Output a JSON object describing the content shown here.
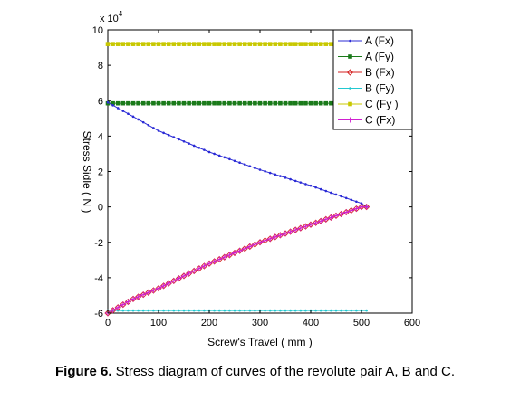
{
  "caption": {
    "label": "Figure 6.",
    "text": " Stress diagram of curves of the revolute pair A, B and C."
  },
  "chart_data": {
    "type": "line",
    "xlabel": "Screw's Travel   ( mm )",
    "ylabel": "Stress Sidle ( N )",
    "y_multiplier_base": "x 10",
    "y_multiplier_exp": "4",
    "xlim": [
      0,
      600
    ],
    "ylim": [
      -6,
      10
    ],
    "x_ticks": [
      0,
      100,
      200,
      300,
      400,
      500,
      600
    ],
    "y_ticks": [
      -6,
      -4,
      -2,
      0,
      2,
      4,
      6,
      8,
      10
    ],
    "grid": false,
    "legend_position": "top-right",
    "series": [
      {
        "name": "A (Fx)",
        "color": "#2b2bd6",
        "marker": "dot",
        "x": [
          0,
          100,
          200,
          300,
          400,
          500,
          510
        ],
        "y": [
          5.9,
          4.3,
          3.1,
          2.1,
          1.2,
          0.2,
          0.0
        ]
      },
      {
        "name": "A (Fy)",
        "color": "#1a7a1a",
        "marker": "square",
        "x": [
          0,
          510
        ],
        "y": [
          5.85,
          5.85
        ]
      },
      {
        "name": "B (Fx)",
        "color": "#d42020",
        "marker": "diamond",
        "x": [
          0,
          50,
          100,
          150,
          200,
          250,
          300,
          350,
          400,
          450,
          500,
          510
        ],
        "y": [
          -6.0,
          -5.2,
          -4.6,
          -3.9,
          -3.2,
          -2.6,
          -2.0,
          -1.5,
          -1.0,
          -0.5,
          0.0,
          0.0
        ]
      },
      {
        "name": "B (Fy)",
        "color": "#22c8d0",
        "marker": "dot",
        "x": [
          0,
          510
        ],
        "y": [
          -5.85,
          -5.85
        ]
      },
      {
        "name": "C (Fy )",
        "color": "#c8c800",
        "marker": "square",
        "x": [
          0,
          510
        ],
        "y": [
          9.2,
          9.2
        ]
      },
      {
        "name": "C (Fx)",
        "color": "#d020d0",
        "marker": "plus",
        "x": [
          0,
          50,
          100,
          150,
          200,
          250,
          300,
          350,
          400,
          450,
          500,
          510
        ],
        "y": [
          -6.0,
          -5.2,
          -4.6,
          -3.9,
          -3.2,
          -2.6,
          -2.0,
          -1.5,
          -1.0,
          -0.5,
          0.0,
          0.0
        ]
      }
    ]
  }
}
